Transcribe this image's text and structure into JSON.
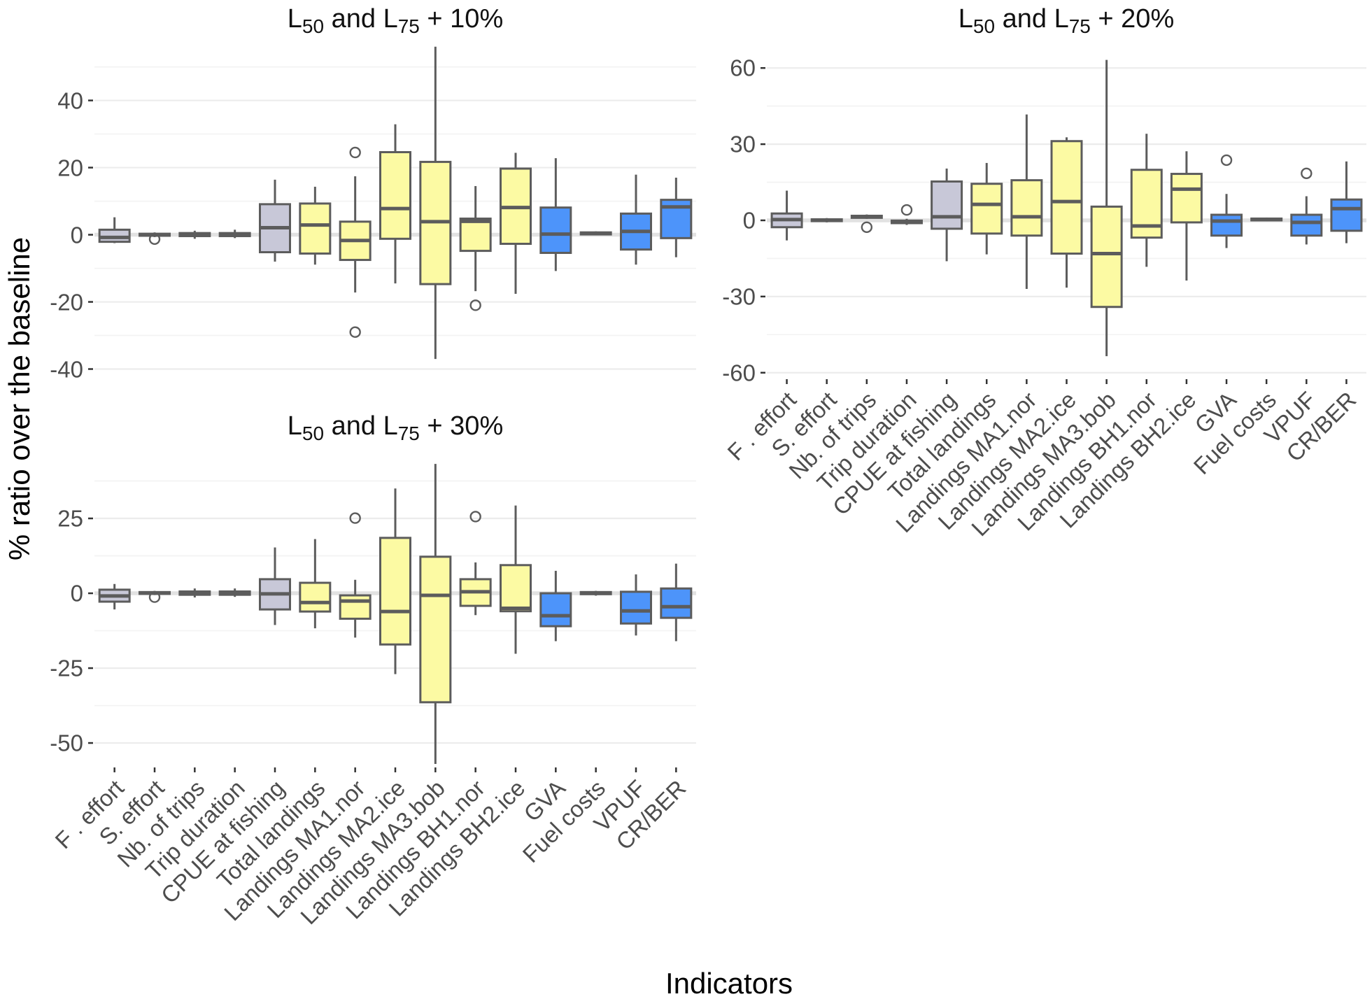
{
  "chart_data": {
    "type": "boxplot",
    "xlabel": "Indicators",
    "ylabel": "% ratio over the baseline",
    "legend_position": "none",
    "grid": "horizontal-only",
    "categories": [
      "F . effort",
      "S. effort",
      "Nb. of trips",
      "Trip duration",
      "CPUE at fishing",
      "Total landings",
      "Landings MA1.nor",
      "Landings MA2.ice",
      "Landings MA3.bob",
      "Landings BH1.nor",
      "Landings BH2.ice",
      "GVA",
      "Fuel costs",
      "VPUF",
      "CR/BER"
    ],
    "category_groups": [
      "effort",
      "effort",
      "effort",
      "effort",
      "effort",
      "landings",
      "landings",
      "landings",
      "landings",
      "landings",
      "landings",
      "economic",
      "economic",
      "economic",
      "economic"
    ],
    "group_colors": {
      "effort": "#C8C8D8",
      "landings": "#FCFAA3",
      "economic": "#4D94FA"
    },
    "style_colors": {
      "box_stroke": "#5C5C5C",
      "grid_major": "#ECECEC",
      "grid_minor": "#F3F3F3",
      "zero_line": "#E2E2E2",
      "tick_mark": "#333333",
      "tick_text": "#4D4D4D"
    },
    "panels": [
      {
        "title": {
          "prefix": "L",
          "sub1": "50",
          "mid": " and L",
          "sub2": "75",
          "tail": " + 10%"
        },
        "title_text": "L50 and L75 + 10%",
        "ylim": [
          -42.6,
          57.0
        ],
        "yticks": [
          -40,
          -20,
          0,
          20,
          40
        ],
        "yticks_minor": [
          -30,
          -10,
          10,
          30,
          50
        ],
        "show_x_labels": false,
        "boxes": [
          {
            "lo": -2.5,
            "q1": -2.1,
            "med": -0.8,
            "q3": 1.5,
            "hi": 5.2,
            "outliers": []
          },
          {
            "lo": -0.7,
            "q1": -0.3,
            "med": 0,
            "q3": 0.3,
            "hi": 0.7,
            "outliers": [
              -1.3
            ]
          },
          {
            "lo": -1.2,
            "q1": -0.4,
            "med": 0.1,
            "q3": 0.5,
            "hi": 1.2,
            "outliers": []
          },
          {
            "lo": -1.0,
            "q1": -0.4,
            "med": 0.1,
            "q3": 0.5,
            "hi": 1.5,
            "outliers": []
          },
          {
            "lo": -8.0,
            "q1": -5.2,
            "med": 2.1,
            "q3": 9.1,
            "hi": 16.4,
            "outliers": []
          },
          {
            "lo": -8.9,
            "q1": -5.6,
            "med": 2.9,
            "q3": 9.3,
            "hi": 14.3,
            "outliers": []
          },
          {
            "lo": -17.2,
            "q1": -7.5,
            "med": -1.7,
            "q3": 3.9,
            "hi": 17.4,
            "outliers": [
              24.5,
              -29.0
            ]
          },
          {
            "lo": -14.5,
            "q1": -1.2,
            "med": 7.8,
            "q3": 24.6,
            "hi": 32.9,
            "outliers": []
          },
          {
            "lo": -37.0,
            "q1": -14.7,
            "med": 3.9,
            "q3": 21.7,
            "hi": 56.0,
            "outliers": []
          },
          {
            "lo": -16.8,
            "q1": -4.8,
            "med": 4.0,
            "q3": 4.8,
            "hi": 14.5,
            "outliers": [
              -21.0
            ]
          },
          {
            "lo": -17.6,
            "q1": -2.7,
            "med": 8.1,
            "q3": 19.7,
            "hi": 24.4,
            "outliers": []
          },
          {
            "lo": -10.8,
            "q1": -5.4,
            "med": 0.2,
            "q3": 8.1,
            "hi": 22.8,
            "outliers": []
          },
          {
            "lo": -0.2,
            "q1": 0.1,
            "med": 0.4,
            "q3": 0.7,
            "hi": 1.0,
            "outliers": []
          },
          {
            "lo": -8.9,
            "q1": -4.4,
            "med": 1.0,
            "q3": 6.3,
            "hi": 17.9,
            "outliers": []
          },
          {
            "lo": -6.7,
            "q1": -1.0,
            "med": 8.3,
            "q3": 10.4,
            "hi": 17.0,
            "outliers": []
          }
        ]
      },
      {
        "title": {
          "prefix": "L",
          "sub1": "50",
          "mid": " and L",
          "sub2": "75",
          "tail": " + 20%"
        },
        "title_text": "L50 and L75 + 20%",
        "ylim": [
          -62.0,
          69.7
        ],
        "yticks": [
          -60,
          -30,
          0,
          30,
          60
        ],
        "yticks_minor": [
          -45,
          -15,
          15,
          45
        ],
        "show_x_labels": true,
        "boxes": [
          {
            "lo": -7.9,
            "q1": -2.7,
            "med": 0.3,
            "q3": 2.7,
            "hi": 11.7,
            "outliers": []
          },
          {
            "lo": -0.8,
            "q1": -0.3,
            "med": 0.1,
            "q3": 0.4,
            "hi": 0.9,
            "outliers": []
          },
          {
            "lo": 0.6,
            "q1": 1.0,
            "med": 1.4,
            "q3": 1.8,
            "hi": 2.3,
            "outliers": [
              -2.7
            ]
          },
          {
            "lo": -1.8,
            "q1": -1.1,
            "med": -0.6,
            "q3": -0.1,
            "hi": 0.6,
            "outliers": [
              4.1
            ]
          },
          {
            "lo": -16.1,
            "q1": -3.3,
            "med": 1.4,
            "q3": 15.3,
            "hi": 20.4,
            "outliers": []
          },
          {
            "lo": -13.4,
            "q1": -5.2,
            "med": 6.3,
            "q3": 14.4,
            "hi": 22.6,
            "outliers": []
          },
          {
            "lo": -27.0,
            "q1": -6.0,
            "med": 1.4,
            "q3": 15.8,
            "hi": 41.7,
            "outliers": []
          },
          {
            "lo": -26.5,
            "q1": -13.1,
            "med": 7.4,
            "q3": 31.2,
            "hi": 32.7,
            "outliers": []
          },
          {
            "lo": -53.5,
            "q1": -34.1,
            "med": -13.1,
            "q3": 5.4,
            "hi": 63.2,
            "outliers": []
          },
          {
            "lo": -18.3,
            "q1": -6.8,
            "med": -2.2,
            "q3": 19.9,
            "hi": 34.1,
            "outliers": []
          },
          {
            "lo": -23.7,
            "q1": -0.8,
            "med": 12.3,
            "q3": 18.3,
            "hi": 27.2,
            "outliers": []
          },
          {
            "lo": -10.9,
            "q1": -6.0,
            "med": -0.3,
            "q3": 2.2,
            "hi": 10.4,
            "outliers": [
              23.7
            ]
          },
          {
            "lo": -0.4,
            "q1": 0,
            "med": 0.3,
            "q3": 0.7,
            "hi": 1.1,
            "outliers": []
          },
          {
            "lo": -9.5,
            "q1": -6.0,
            "med": -0.8,
            "q3": 2.2,
            "hi": 9.5,
            "outliers": [
              18.5
            ]
          },
          {
            "lo": -9.0,
            "q1": -4.1,
            "med": 4.6,
            "q3": 8.2,
            "hi": 23.2,
            "outliers": []
          }
        ]
      },
      {
        "title": {
          "prefix": "L",
          "sub1": "50",
          "mid": " and L",
          "sub2": "75",
          "tail": " + 30%"
        },
        "title_text": "L50 and L75 + 30%",
        "ylim": [
          -57.7,
          44.4
        ],
        "yticks": [
          -50,
          -25,
          0,
          25
        ],
        "yticks_minor": [
          -37.5,
          -12.5,
          12.5,
          37.5
        ],
        "show_x_labels": true,
        "boxes": [
          {
            "lo": -5.4,
            "q1": -2.8,
            "med": -0.9,
            "q3": 1.2,
            "hi": 3.1,
            "outliers": []
          },
          {
            "lo": -0.6,
            "q1": -0.2,
            "med": 0.1,
            "q3": 0.4,
            "hi": 0.8,
            "outliers": [
              -1.3
            ]
          },
          {
            "lo": -1.4,
            "q1": -0.5,
            "med": 0.1,
            "q3": 0.6,
            "hi": 1.6,
            "outliers": []
          },
          {
            "lo": -1.2,
            "q1": -0.5,
            "med": 0.1,
            "q3": 0.6,
            "hi": 1.6,
            "outliers": []
          },
          {
            "lo": -10.6,
            "q1": -5.4,
            "med": -0.2,
            "q3": 4.7,
            "hi": 15.3,
            "outliers": []
          },
          {
            "lo": -11.7,
            "q1": -6.1,
            "med": -3.1,
            "q3": 3.5,
            "hi": 18.1,
            "outliers": []
          },
          {
            "lo": -14.8,
            "q1": -8.5,
            "med": -2.6,
            "q3": -0.7,
            "hi": 4.5,
            "outliers": [
              25.1
            ]
          },
          {
            "lo": -27.0,
            "q1": -17.1,
            "med": -6.1,
            "q3": 18.5,
            "hi": 35.0,
            "outliers": []
          },
          {
            "lo": -57.0,
            "q1": -36.4,
            "med": -0.7,
            "q3": 12.2,
            "hi": 43.2,
            "outliers": []
          },
          {
            "lo": -7.3,
            "q1": -4.2,
            "med": 0.5,
            "q3": 4.7,
            "hi": 10.3,
            "outliers": [
              25.6
            ]
          },
          {
            "lo": -20.2,
            "q1": -6.0,
            "med": -5.0,
            "q3": 9.4,
            "hi": 29.3,
            "outliers": []
          },
          {
            "lo": -16.0,
            "q1": -11.0,
            "med": -7.5,
            "q3": 0,
            "hi": 7.5,
            "outliers": []
          },
          {
            "lo": -0.8,
            "q1": -0.3,
            "med": 0.1,
            "q3": 0.4,
            "hi": 0.8,
            "outliers": []
          },
          {
            "lo": -14.1,
            "q1": -10.1,
            "med": -5.9,
            "q3": 0.5,
            "hi": 6.3,
            "outliers": []
          },
          {
            "lo": -16.0,
            "q1": -8.2,
            "med": -4.5,
            "q3": 1.6,
            "hi": 9.9,
            "outliers": []
          }
        ]
      }
    ]
  }
}
